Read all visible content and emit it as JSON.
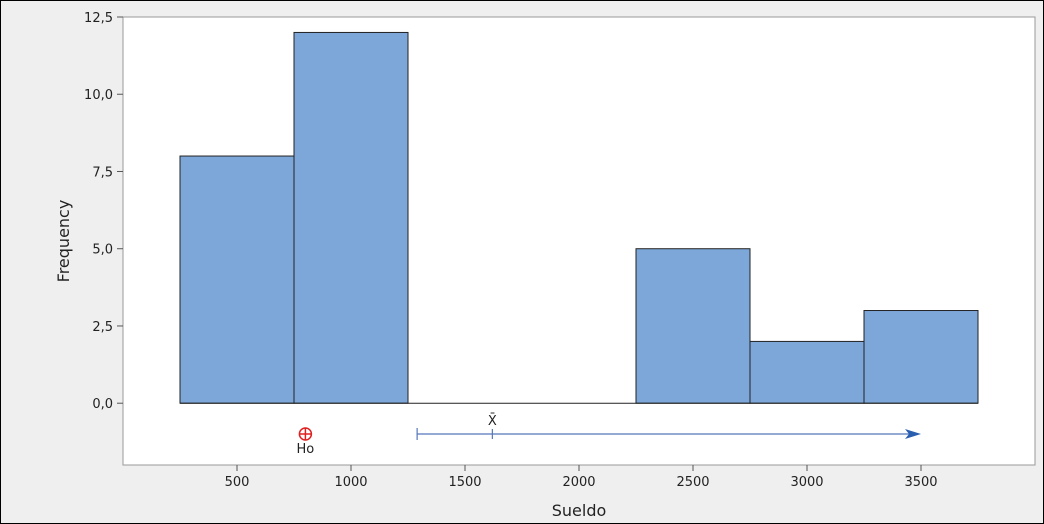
{
  "chart_data": {
    "type": "bar",
    "bins": [
      {
        "start": 250,
        "end": 750,
        "value": 8
      },
      {
        "start": 750,
        "end": 1250,
        "value": 12
      },
      {
        "start": 1250,
        "end": 1750,
        "value": 0
      },
      {
        "start": 1750,
        "end": 2250,
        "value": 0
      },
      {
        "start": 2250,
        "end": 2750,
        "value": 5
      },
      {
        "start": 2750,
        "end": 3250,
        "value": 2
      },
      {
        "start": 3250,
        "end": 3750,
        "value": 3
      }
    ],
    "xlabel": "Sueldo",
    "ylabel": "Frequency",
    "xlim": [
      0,
      4000
    ],
    "ylim": [
      -2,
      12.5
    ],
    "x_ticks": [
      500,
      1000,
      1500,
      2000,
      2500,
      3000,
      3500
    ],
    "x_tick_labels": [
      "500",
      "1000",
      "1500",
      "2000",
      "2500",
      "3000",
      "3500"
    ],
    "y_ticks": [
      0,
      2.5,
      5,
      7.5,
      10,
      12.5
    ],
    "y_tick_labels": [
      "0,0",
      "2,5",
      "5,0",
      "7,5",
      "10,0",
      "12,5"
    ],
    "h0": {
      "label": "Ho",
      "value": 800,
      "color": "#e02020"
    },
    "mean": {
      "label": "X̄",
      "value": 1620,
      "interval_start": 1290,
      "interval_end": 3500,
      "color": "#5577bb"
    },
    "bar_fill": "#7da7d9",
    "bar_stroke": "#222222"
  }
}
